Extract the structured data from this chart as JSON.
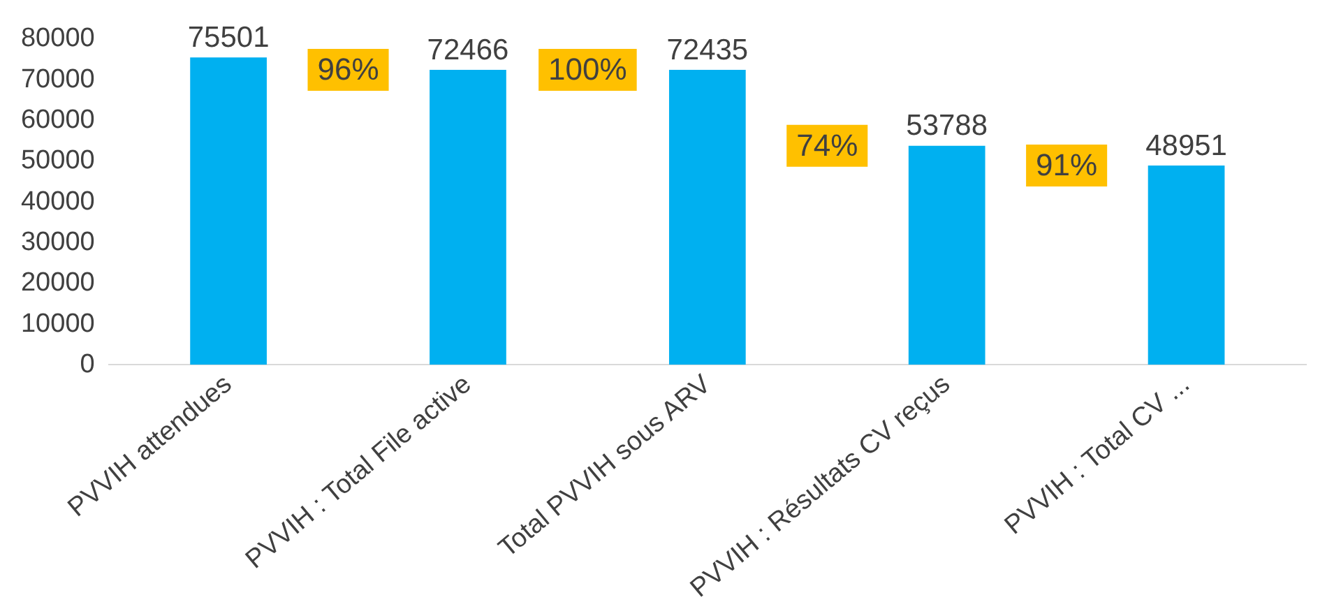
{
  "chart_data": {
    "type": "bar",
    "categories": [
      "PVVIH attendues",
      "PVVIH : Total File active",
      "Total PVVIH sous ARV",
      "PVVIH : Résultats CV reçus",
      "PVVIH : Total CV ..."
    ],
    "values": [
      75501,
      72466,
      72435,
      53788,
      48951
    ],
    "color": "#00b0f0",
    "ylim": [
      0,
      80000
    ],
    "yticks": [
      0,
      10000,
      20000,
      30000,
      40000,
      50000,
      60000,
      70000,
      80000
    ],
    "grid": false,
    "legend": false,
    "data_labels": true,
    "annotations": [
      "96%",
      "100%",
      "74%",
      "91%"
    ]
  }
}
